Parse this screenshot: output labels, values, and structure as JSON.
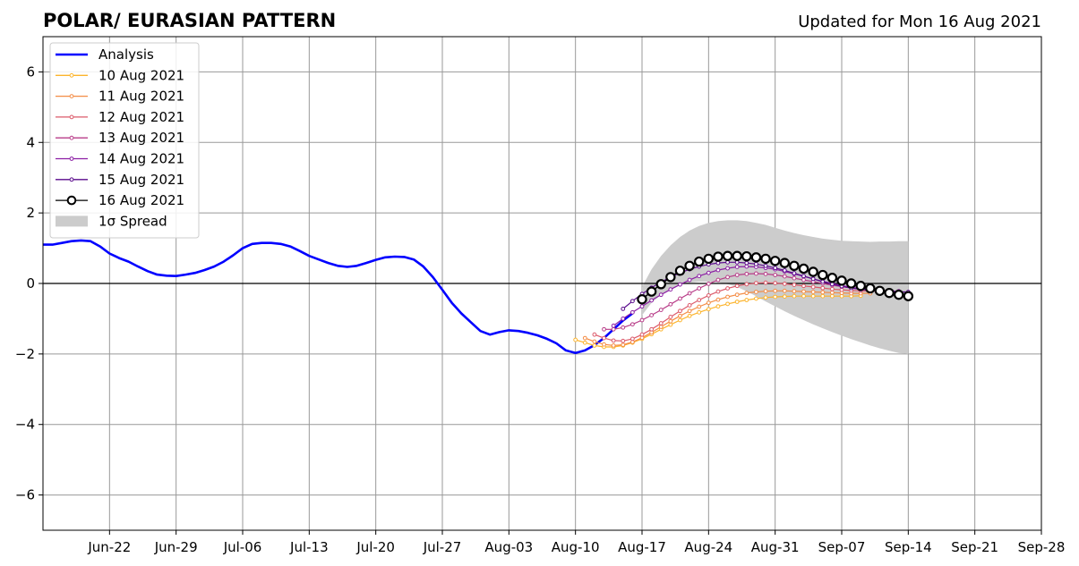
{
  "chart_data": {
    "type": "line",
    "title": "POLAR/ EURASIAN  PATTERN",
    "subtitle": "Updated for Mon 16 Aug 2021",
    "ylim": [
      -7,
      7
    ],
    "yticks": [
      -6,
      -4,
      -2,
      0,
      2,
      4,
      6
    ],
    "ytick_labels": [
      "−6",
      "−4",
      "−2",
      "0",
      "2",
      "4",
      "6"
    ],
    "xlim": [
      "2021-06-15",
      "2021-09-28"
    ],
    "xticks": [
      "2021-06-22",
      "2021-06-29",
      "2021-07-06",
      "2021-07-13",
      "2021-07-20",
      "2021-07-27",
      "2021-08-03",
      "2021-08-10",
      "2021-08-17",
      "2021-08-24",
      "2021-08-31",
      "2021-09-07",
      "2021-09-14",
      "2021-09-21",
      "2021-09-28"
    ],
    "xtick_labels": [
      "Jun-22",
      "Jun-29",
      "Jul-06",
      "Jul-13",
      "Jul-20",
      "Jul-27",
      "Aug-03",
      "Aug-10",
      "Aug-17",
      "Aug-24",
      "Aug-31",
      "Sep-07",
      "Sep-14",
      "Sep-21",
      "Sep-28"
    ],
    "grid": true,
    "legend_position": "top-left",
    "analysis": {
      "name": "Analysis",
      "color": "#0000ff",
      "start": "2021-06-15",
      "values": [
        1.1,
        1.1,
        1.15,
        1.2,
        1.22,
        1.2,
        1.05,
        0.85,
        0.72,
        0.62,
        0.48,
        0.35,
        0.25,
        0.22,
        0.21,
        0.25,
        0.3,
        0.38,
        0.48,
        0.62,
        0.8,
        1.0,
        1.12,
        1.15,
        1.15,
        1.12,
        1.05,
        0.92,
        0.78,
        0.68,
        0.58,
        0.5,
        0.47,
        0.5,
        0.58,
        0.67,
        0.74,
        0.76,
        0.75,
        0.68,
        0.48,
        0.18,
        -0.18,
        -0.55,
        -0.85,
        -1.1,
        -1.35,
        -1.45,
        -1.38,
        -1.33,
        -1.35,
        -1.4,
        -1.47,
        -1.57,
        -1.7,
        -1.9,
        -1.97,
        -1.9,
        -1.75,
        -1.55,
        -1.3,
        -1.05,
        -0.85
      ]
    },
    "forecasts": [
      {
        "name": "10 Aug 2021",
        "color": "#fcb42c",
        "start": "2021-08-10",
        "values": [
          -1.6,
          -1.68,
          -1.76,
          -1.8,
          -1.8,
          -1.76,
          -1.68,
          -1.57,
          -1.44,
          -1.3,
          -1.17,
          -1.04,
          -0.92,
          -0.82,
          -0.73,
          -0.65,
          -0.58,
          -0.52,
          -0.47,
          -0.43,
          -0.4,
          -0.38,
          -0.37,
          -0.36,
          -0.36,
          -0.36,
          -0.36,
          -0.36,
          -0.36,
          -0.36,
          -0.35
        ]
      },
      {
        "name": "11 Aug 2021",
        "color": "#f48c44",
        "start": "2021-08-11",
        "values": [
          -1.55,
          -1.65,
          -1.73,
          -1.76,
          -1.74,
          -1.66,
          -1.54,
          -1.39,
          -1.23,
          -1.07,
          -0.92,
          -0.78,
          -0.66,
          -0.55,
          -0.46,
          -0.38,
          -0.32,
          -0.27,
          -0.24,
          -0.22,
          -0.21,
          -0.21,
          -0.22,
          -0.23,
          -0.24,
          -0.25,
          -0.26,
          -0.27,
          -0.28,
          -0.28,
          -0.28
        ]
      },
      {
        "name": "12 Aug 2021",
        "color": "#dc5a6a",
        "start": "2021-08-12",
        "values": [
          -1.45,
          -1.55,
          -1.62,
          -1.63,
          -1.57,
          -1.45,
          -1.3,
          -1.13,
          -0.95,
          -0.78,
          -0.62,
          -0.47,
          -0.34,
          -0.23,
          -0.14,
          -0.07,
          -0.02,
          0.01,
          0.02,
          0.01,
          -0.01,
          -0.04,
          -0.07,
          -0.1,
          -0.13,
          -0.16,
          -0.18,
          -0.2,
          -0.21,
          -0.22,
          -0.22
        ]
      },
      {
        "name": "13 Aug 2021",
        "color": "#b83c88",
        "start": "2021-08-13",
        "values": [
          -1.3,
          -1.3,
          -1.25,
          -1.16,
          -1.04,
          -0.9,
          -0.75,
          -0.59,
          -0.43,
          -0.28,
          -0.14,
          -0.01,
          0.1,
          0.18,
          0.24,
          0.27,
          0.28,
          0.27,
          0.24,
          0.2,
          0.15,
          0.1,
          0.05,
          0.0,
          -0.05,
          -0.09,
          -0.13,
          -0.16,
          -0.18,
          -0.2,
          -0.21
        ]
      },
      {
        "name": "14 Aug 2021",
        "color": "#8c1ea4",
        "start": "2021-08-14",
        "values": [
          -1.2,
          -1.0,
          -0.82,
          -0.65,
          -0.48,
          -0.32,
          -0.17,
          -0.03,
          0.1,
          0.21,
          0.3,
          0.38,
          0.43,
          0.47,
          0.48,
          0.47,
          0.44,
          0.4,
          0.34,
          0.27,
          0.2,
          0.13,
          0.06,
          0.0,
          -0.06,
          -0.11,
          -0.15,
          -0.18,
          -0.2,
          -0.21,
          -0.22
        ]
      },
      {
        "name": "15 Aug 2021",
        "color": "#5a0a8c",
        "start": "2021-08-15",
        "values": [
          -0.72,
          -0.5,
          -0.3,
          -0.12,
          0.04,
          0.18,
          0.3,
          0.4,
          0.48,
          0.54,
          0.58,
          0.6,
          0.6,
          0.58,
          0.55,
          0.5,
          0.44,
          0.37,
          0.29,
          0.21,
          0.13,
          0.05,
          -0.02,
          -0.08,
          -0.13,
          -0.17,
          -0.2,
          -0.22,
          -0.23,
          -0.24,
          -0.24
        ]
      },
      {
        "name": "16 Aug 2021",
        "color": "#000000",
        "start": "2021-08-17",
        "values": [
          -0.45,
          -0.23,
          -0.02,
          0.18,
          0.36,
          0.5,
          0.62,
          0.7,
          0.76,
          0.78,
          0.78,
          0.77,
          0.74,
          0.7,
          0.64,
          0.58,
          0.5,
          0.42,
          0.33,
          0.24,
          0.16,
          0.08,
          0.0,
          -0.07,
          -0.14,
          -0.21,
          -0.27,
          -0.32,
          -0.36
        ]
      }
    ],
    "spread": {
      "name": "1σ Spread",
      "color": "#cccccc",
      "start": "2021-08-17",
      "upper": [
        -0.1,
        0.4,
        0.78,
        1.08,
        1.32,
        1.5,
        1.63,
        1.72,
        1.77,
        1.79,
        1.79,
        1.77,
        1.72,
        1.66,
        1.58,
        1.5,
        1.43,
        1.37,
        1.32,
        1.27,
        1.24,
        1.21,
        1.2,
        1.19,
        1.18,
        1.19,
        1.19,
        1.2,
        1.2
      ],
      "lower": [
        -0.9,
        -0.55,
        -0.32,
        -0.15,
        -0.04,
        0.02,
        0.05,
        0.05,
        0.03,
        -0.02,
        -0.1,
        -0.22,
        -0.36,
        -0.51,
        -0.65,
        -0.79,
        -0.92,
        -1.04,
        -1.16,
        -1.27,
        -1.38,
        -1.48,
        -1.58,
        -1.67,
        -1.76,
        -1.84,
        -1.91,
        -1.97,
        -2.0
      ]
    }
  }
}
